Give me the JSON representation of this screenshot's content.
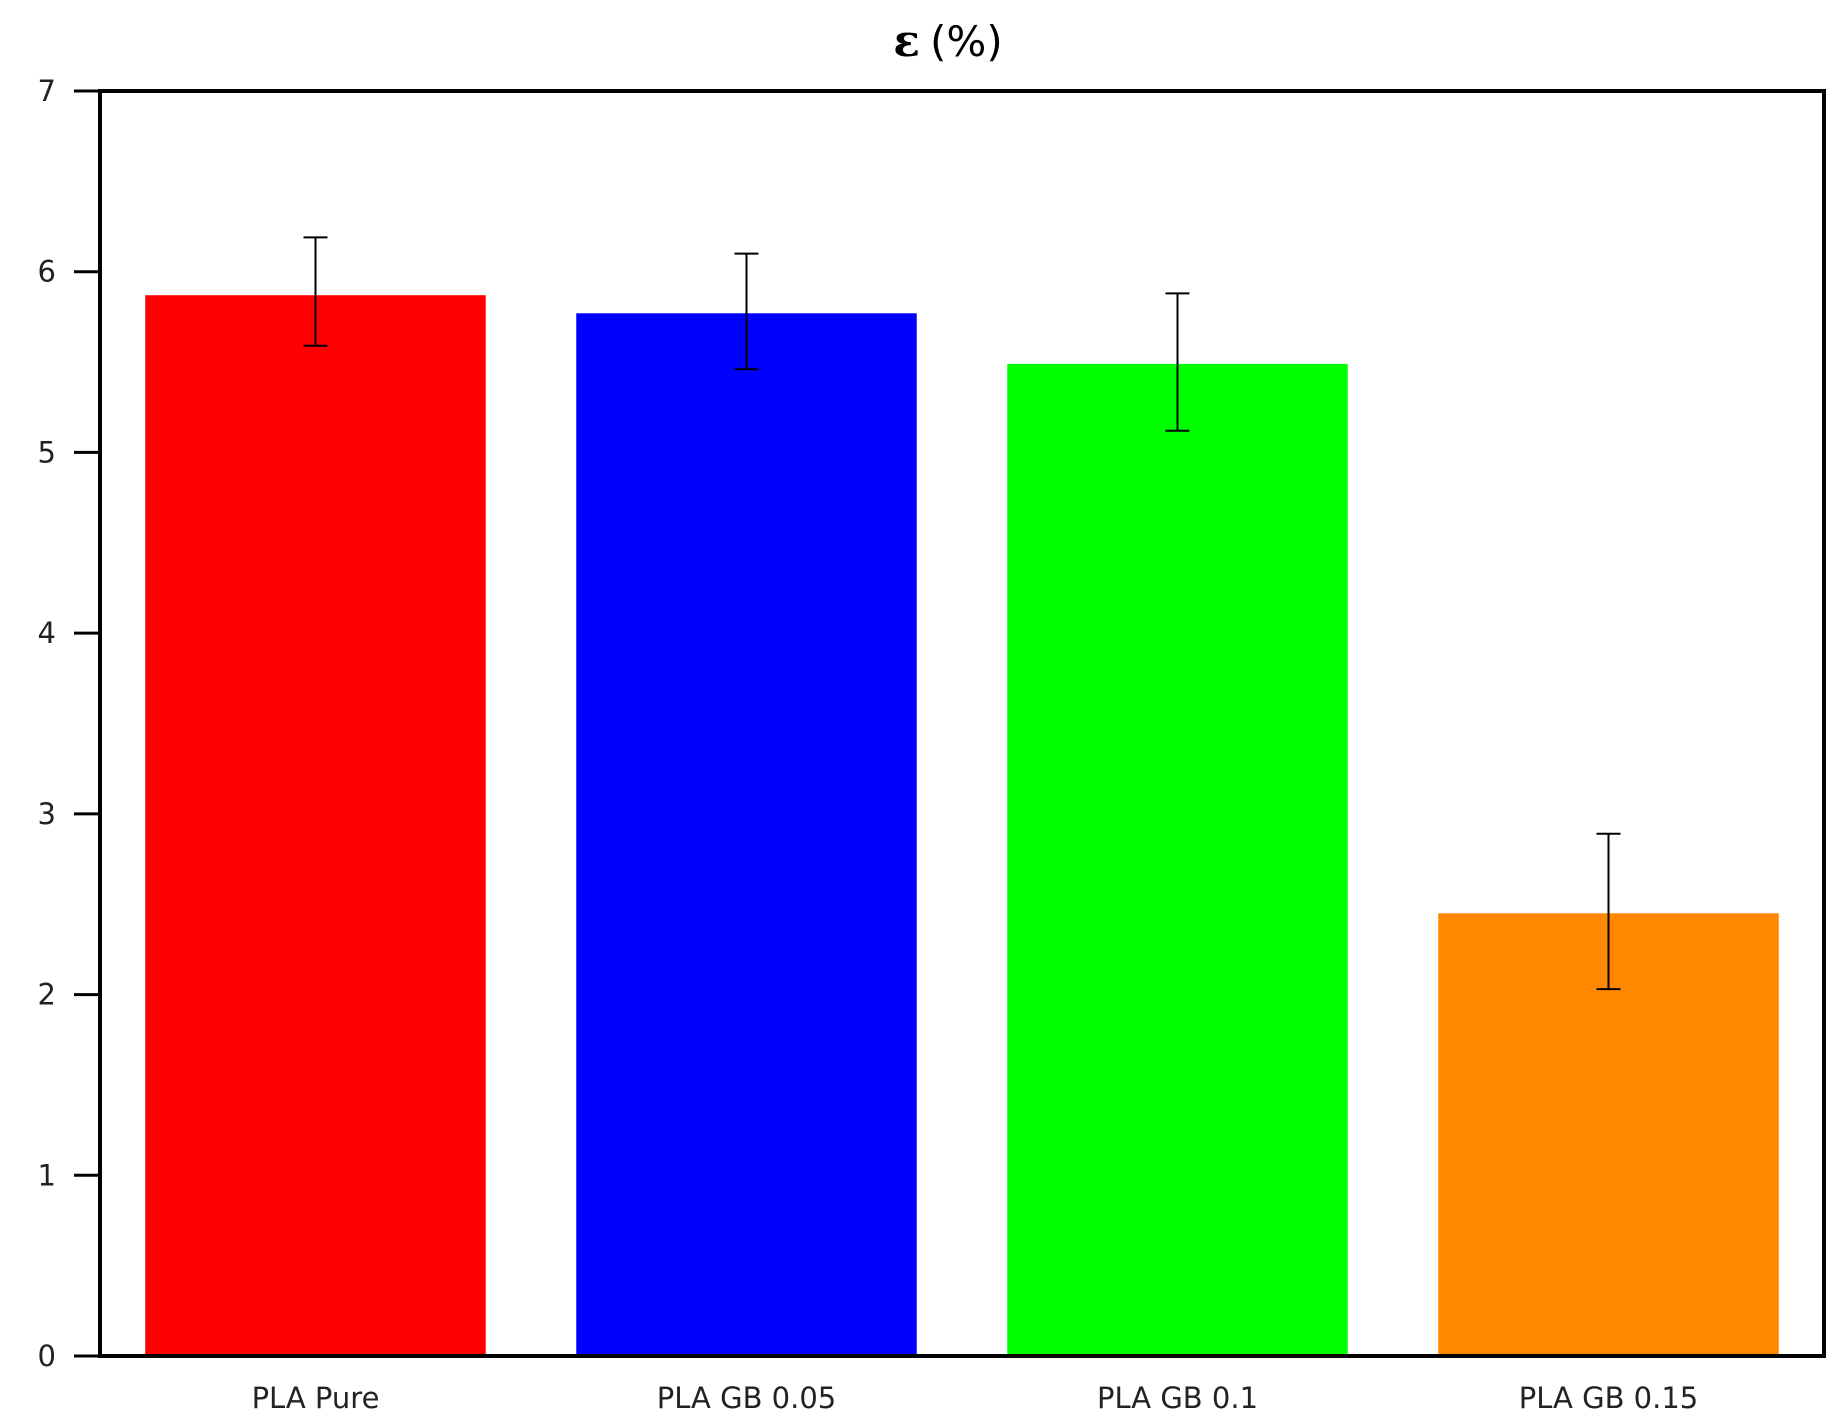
{
  "chart_data": {
    "type": "bar",
    "title_symbol": "ε",
    "title_unit": "(%)",
    "categories": [
      "PLA Pure",
      "PLA GB 0.05",
      "PLA GB 0.1",
      "PLA GB 0.15"
    ],
    "values": [
      5.87,
      5.77,
      5.49,
      2.45
    ],
    "error_low": [
      5.59,
      5.46,
      5.12,
      2.03
    ],
    "error_high": [
      6.19,
      6.1,
      5.88,
      2.89
    ],
    "colors": [
      "#ff0000",
      "#0000ff",
      "#00ff00",
      "#ff8800"
    ],
    "yticks": [
      0,
      1,
      2,
      3,
      4,
      5,
      6,
      7
    ],
    "ylim": [
      0,
      7
    ],
    "grid": false,
    "legend": "none"
  }
}
